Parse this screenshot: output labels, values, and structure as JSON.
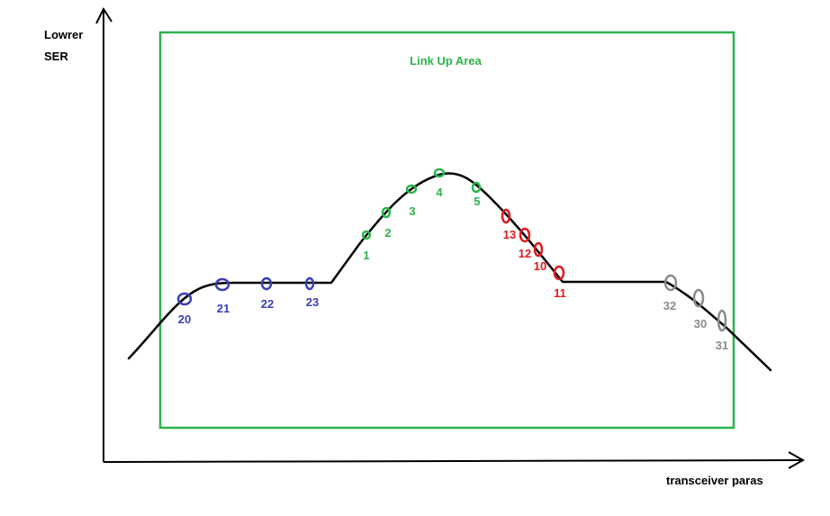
{
  "y_axis_label_line1": "Lowrer",
  "y_axis_label_line2": "SER",
  "x_axis_label": "transceiver paras",
  "area_label": "Link Up Area",
  "colors": {
    "axis": "#000000",
    "curve": "#000000",
    "area": "#2db34a",
    "blue": "#3b3fb5",
    "green": "#2db34a",
    "red": "#e0181e",
    "gray": "#8a8a8a"
  },
  "markers": [
    {
      "label": "20",
      "group": "blue"
    },
    {
      "label": "21",
      "group": "blue"
    },
    {
      "label": "22",
      "group": "blue"
    },
    {
      "label": "23",
      "group": "blue"
    },
    {
      "label": "1",
      "group": "green"
    },
    {
      "label": "2",
      "group": "green"
    },
    {
      "label": "3",
      "group": "green"
    },
    {
      "label": "4",
      "group": "green"
    },
    {
      "label": "5",
      "group": "green"
    },
    {
      "label": "13",
      "group": "red"
    },
    {
      "label": "12",
      "group": "red"
    },
    {
      "label": "10",
      "group": "red"
    },
    {
      "label": "11",
      "group": "red"
    },
    {
      "label": "32",
      "group": "gray"
    },
    {
      "label": "30",
      "group": "gray"
    },
    {
      "label": "31",
      "group": "gray"
    }
  ]
}
